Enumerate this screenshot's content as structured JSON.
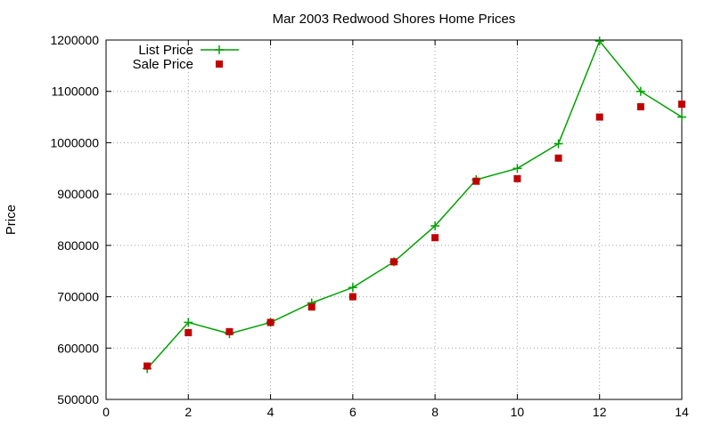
{
  "chart_data": {
    "type": "line",
    "title": "Mar 2003 Redwood Shores Home Prices",
    "xlabel": "",
    "ylabel": "Price",
    "xlim": [
      0,
      14
    ],
    "ylim": [
      500000,
      1200000
    ],
    "x_ticks": [
      0,
      2,
      4,
      6,
      8,
      10,
      12,
      14
    ],
    "y_ticks": [
      500000,
      600000,
      700000,
      800000,
      900000,
      1000000,
      1100000,
      1200000
    ],
    "grid": true,
    "legend_position": "top-left",
    "series": [
      {
        "name": "List Price",
        "style": "line+plus",
        "color": "#00a000",
        "x": [
          1,
          2,
          3,
          4,
          5,
          6,
          7,
          8,
          9,
          10,
          11,
          12,
          13,
          14
        ],
        "y": [
          560000,
          650000,
          628000,
          650000,
          688000,
          718000,
          768000,
          838000,
          928000,
          950000,
          998000,
          1198000,
          1100000,
          1050000
        ]
      },
      {
        "name": "Sale Price",
        "style": "square",
        "color": "#c00000",
        "x": [
          1,
          2,
          3,
          4,
          5,
          6,
          7,
          8,
          9,
          10,
          11,
          12,
          13,
          14
        ],
        "y": [
          565000,
          630000,
          632000,
          650000,
          680000,
          700000,
          768000,
          815000,
          925000,
          930000,
          970000,
          1050000,
          1070000,
          1075000
        ]
      }
    ]
  }
}
